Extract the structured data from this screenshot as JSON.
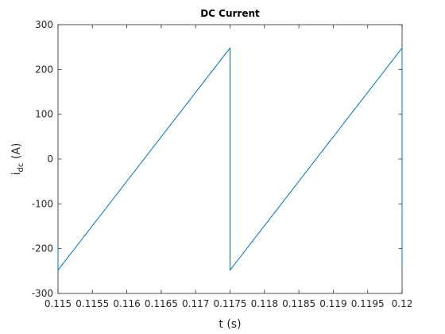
{
  "chart_data": {
    "type": "line",
    "title": "DC  Current",
    "xlabel": "t (s)",
    "ylabel_main": "i",
    "ylabel_sub": "dc",
    "ylabel_unit": " (A)",
    "xlim": [
      0.115,
      0.12
    ],
    "ylim": [
      -300,
      300
    ],
    "xticks": [
      0.115,
      0.1155,
      0.116,
      0.1165,
      0.117,
      0.1175,
      0.118,
      0.1185,
      0.119,
      0.1195,
      0.12
    ],
    "xtick_labels": [
      "0.115",
      "0.1155",
      "0.116",
      "0.1165",
      "0.117",
      "0.1175",
      "0.118",
      "0.1185",
      "0.119",
      "0.1195",
      "0.12"
    ],
    "yticks": [
      -300,
      -200,
      -100,
      0,
      100,
      200,
      300
    ],
    "ytick_labels": [
      "-300",
      "-200",
      "-100",
      "0",
      "100",
      "200",
      "300"
    ],
    "grid": false,
    "series": [
      {
        "color": "#0072BD",
        "x": [
          0.115,
          0.115,
          0.1175,
          0.1175,
          0.1175,
          0.12,
          0.12,
          0.12
        ],
        "y": [
          -190,
          -248,
          248,
          200,
          -248,
          248,
          200,
          -240
        ]
      }
    ]
  }
}
